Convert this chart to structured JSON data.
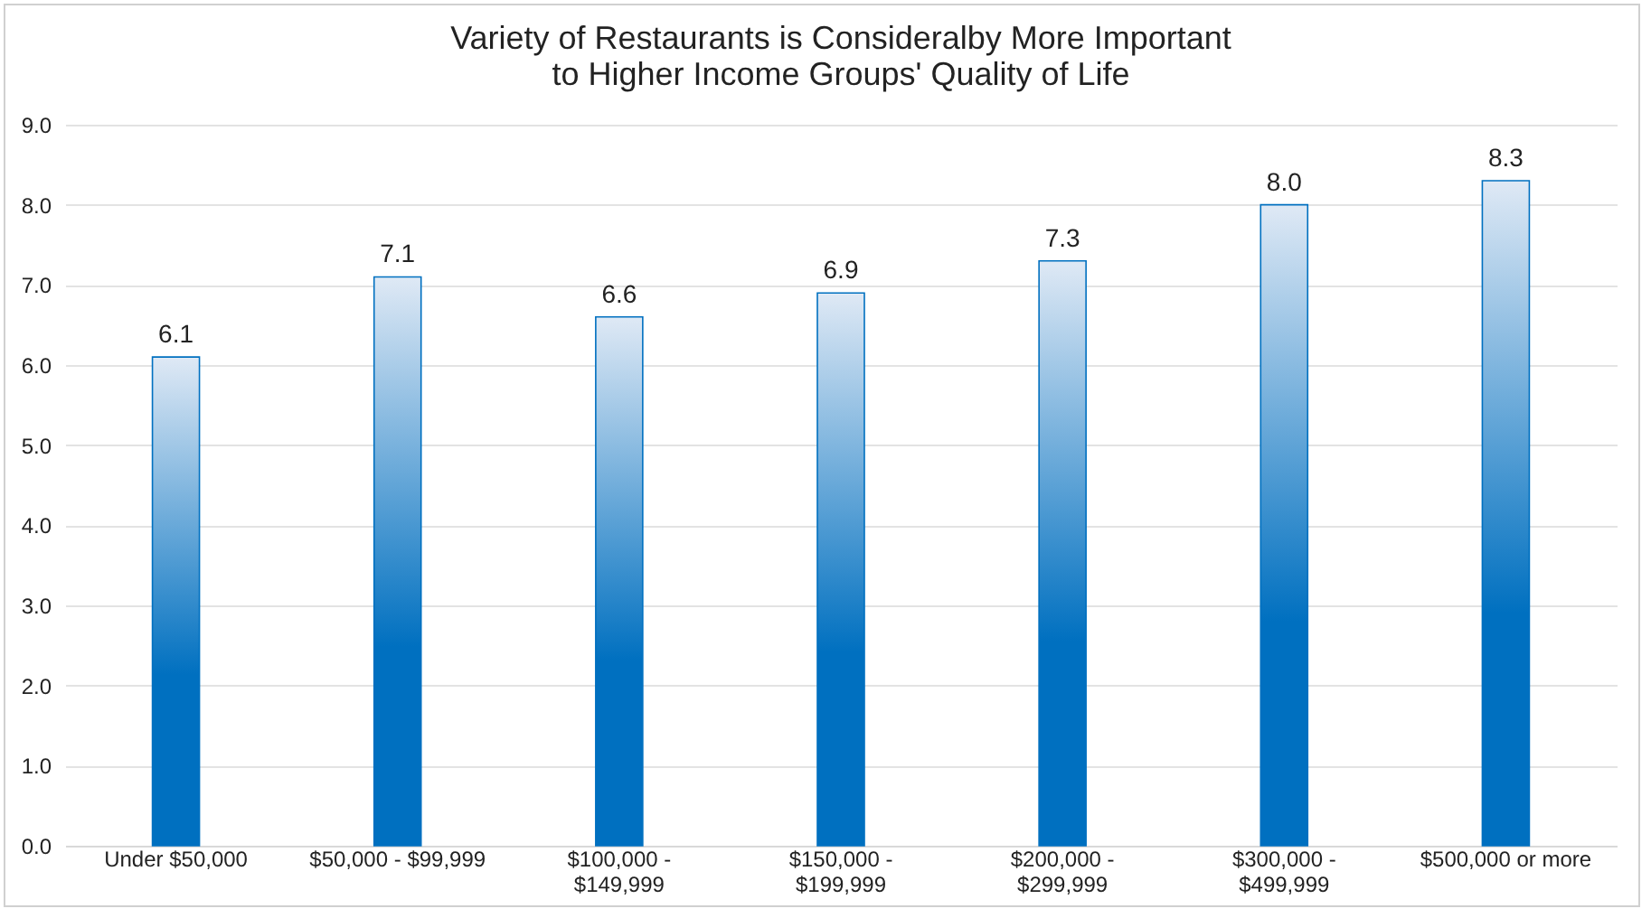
{
  "chart_data": {
    "type": "bar",
    "title": "Variety of Restaurants is Consideralby More Important to Higher Income Groups' Quality of Life",
    "categories": [
      "Under $50,000",
      "$50,000 - $99,999",
      "$100,000 - $149,999",
      "$150,000 - $199,999",
      "$200,000 - $299,999",
      "$300,000 - $499,999",
      "$500,000 or more"
    ],
    "values": [
      6.1,
      7.1,
      6.6,
      6.9,
      7.3,
      8.0,
      8.3
    ],
    "value_labels": [
      "6.1",
      "7.1",
      "6.6",
      "6.9",
      "7.3",
      "8.0",
      "8.3"
    ],
    "color": "#0070c0",
    "ylim": [
      0,
      9
    ],
    "yticks": [
      {
        "value": 0,
        "label": "0.0"
      },
      {
        "value": 1,
        "label": "1.0"
      },
      {
        "value": 2,
        "label": "2.0"
      },
      {
        "value": 3,
        "label": "3.0"
      },
      {
        "value": 4,
        "label": "4.0"
      },
      {
        "value": 5,
        "label": "5.0"
      },
      {
        "value": 6,
        "label": "6.0"
      },
      {
        "value": 7,
        "label": "7.0"
      },
      {
        "value": 8,
        "label": "8.0"
      },
      {
        "value": 9,
        "label": "9.0"
      }
    ],
    "grid": "y"
  }
}
